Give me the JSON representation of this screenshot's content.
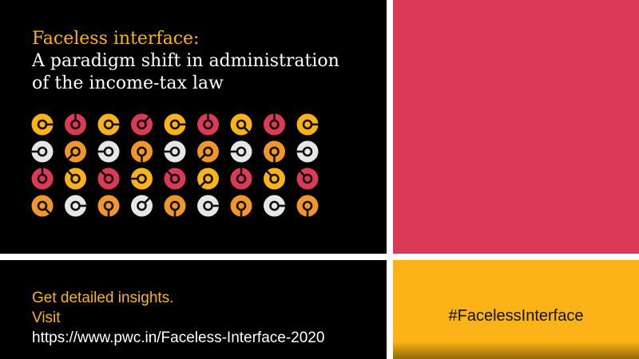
{
  "headline": {
    "accent": "Faceless interface:",
    "line2": "A paradigm shift in administration",
    "line3": "of the income-tax law"
  },
  "cta": {
    "line1": "Get detailed insights.",
    "line2": "Visit",
    "url": "https://www.pwc.in/Faceless-Interface-2020"
  },
  "hashtag": "#FacelessInterface",
  "colors": {
    "background": "#000000",
    "divider": "#ffffff",
    "pink_panel": "#db3a57",
    "yellow_panel": "#fbb317",
    "accent_text": "#fbb317"
  },
  "icons": {
    "name": "lock-dial-icon",
    "palette": {
      "Y": "#fbb317",
      "R": "#db3a57",
      "O": "#f0962a",
      "W": "#e6e6e6"
    },
    "rows": [
      [
        [
          "Y",
          "E"
        ],
        [
          "R",
          "N"
        ],
        [
          "Y",
          "E"
        ],
        [
          "R",
          "NE"
        ],
        [
          "Y",
          "E"
        ],
        [
          "R",
          "N"
        ],
        [
          "Y",
          "SE"
        ],
        [
          "R",
          "N"
        ],
        [
          "Y",
          "E"
        ]
      ],
      [
        [
          "W",
          "W"
        ],
        [
          "O",
          "SW"
        ],
        [
          "W",
          "W"
        ],
        [
          "O",
          "S"
        ],
        [
          "W",
          "W"
        ],
        [
          "O",
          "SW"
        ],
        [
          "W",
          "W"
        ],
        [
          "O",
          "S"
        ],
        [
          "W",
          "W"
        ]
      ],
      [
        [
          "R",
          "N"
        ],
        [
          "Y",
          "NW"
        ],
        [
          "R",
          "NW"
        ],
        [
          "Y",
          "W"
        ],
        [
          "R",
          "NW"
        ],
        [
          "Y",
          "SW"
        ],
        [
          "R",
          "N"
        ],
        [
          "Y",
          "NW"
        ],
        [
          "R",
          "NW"
        ]
      ],
      [
        [
          "O",
          "SE"
        ],
        [
          "W",
          "E"
        ],
        [
          "O",
          "S"
        ],
        [
          "W",
          "NE"
        ],
        [
          "O",
          "S"
        ],
        [
          "W",
          "E"
        ],
        [
          "O",
          "S"
        ],
        [
          "W",
          "E"
        ],
        [
          "O",
          "S"
        ]
      ]
    ]
  }
}
